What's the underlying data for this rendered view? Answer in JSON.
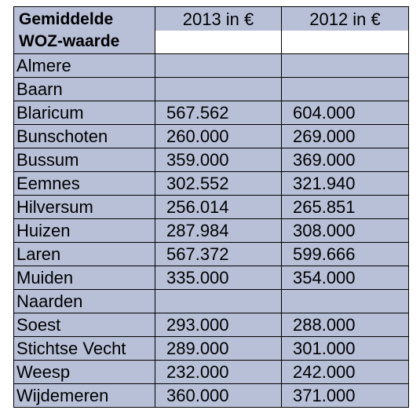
{
  "table": {
    "header": {
      "col1": "Gemiddelde WOZ-waarde",
      "col2": "2013 in €",
      "col3": "2012 in €"
    },
    "rows": [
      {
        "municipality": "Almere",
        "v2013": "",
        "v2012": ""
      },
      {
        "municipality": "Baarn",
        "v2013": "",
        "v2012": ""
      },
      {
        "municipality": "Blaricum",
        "v2013": "567.562",
        "v2012": "604.000"
      },
      {
        "municipality": "Bunschoten",
        "v2013": "260.000",
        "v2012": "269.000"
      },
      {
        "municipality": "Bussum",
        "v2013": "359.000",
        "v2012": "369.000"
      },
      {
        "municipality": "Eemnes",
        "v2013": "302.552",
        "v2012": "321.940"
      },
      {
        "municipality": "Hilversum",
        "v2013": "256.014",
        "v2012": "265.851"
      },
      {
        "municipality": "Huizen",
        "v2013": "287.984",
        "v2012": "308.000"
      },
      {
        "municipality": "Laren",
        "v2013": "567.372",
        "v2012": "599.666"
      },
      {
        "municipality": "Muiden",
        "v2013": "335.000",
        "v2012": "354.000"
      },
      {
        "municipality": "Naarden",
        "v2013": "",
        "v2012": ""
      },
      {
        "municipality": "Soest",
        "v2013": "293.000",
        "v2012": "288.000"
      },
      {
        "municipality": "Stichtse Vecht",
        "v2013": "289.000",
        "v2012": "301.000"
      },
      {
        "municipality": "Weesp",
        "v2013": "232.000",
        "v2012": "242.000"
      },
      {
        "municipality": "Wijdemeren",
        "v2013": "360.000",
        "v2012": "371.000"
      }
    ]
  },
  "colors": {
    "cell_fill": "#b8c0d8",
    "border": "#000000",
    "blank_fill": "#ffffff"
  }
}
